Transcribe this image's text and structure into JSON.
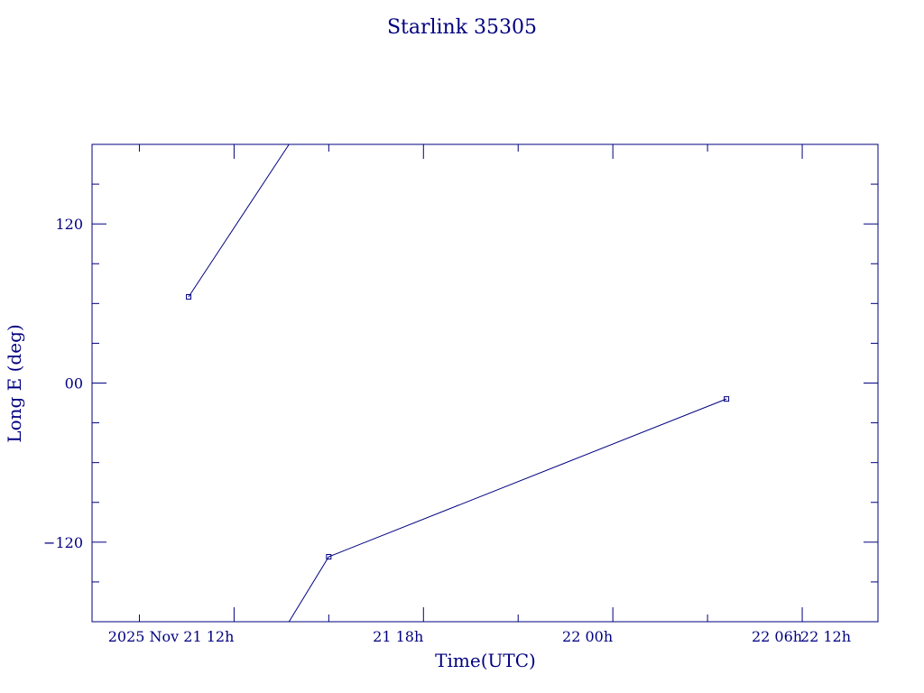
{
  "chart_data": {
    "type": "line",
    "title": "Starlink 35305",
    "xlabel": "Time(UTC)",
    "ylabel": "Long E (deg)",
    "x_unit": "hours",
    "xlim": [
      6.5,
      14.8
    ],
    "ylim": [
      -180,
      180
    ],
    "y_ticks_major": [
      {
        "value": 120,
        "label": "120"
      },
      {
        "value": 0,
        "label": "00"
      },
      {
        "value": -120,
        "label": "-120"
      }
    ],
    "y_minor_step": 30,
    "x_ticks_major": [
      {
        "value": 8.0,
        "label": "2025 Nov 21 12h"
      },
      {
        "value": 10.0,
        "label": "21 18h"
      },
      {
        "value": 12.0,
        "label": "22 00h"
      },
      {
        "value": 14.0,
        "label": "22 06h"
      },
      {
        "value": 16.0,
        "label": "22 12h"
      }
    ],
    "series": [
      {
        "points": [
          {
            "x": 7.52,
            "y": 65.0
          },
          {
            "x": 8.58,
            "y": 180.0
          }
        ],
        "markers": [
          0
        ]
      },
      {
        "points": [
          {
            "x": 8.58,
            "y": -180.0
          },
          {
            "x": 9.0,
            "y": -131.0
          },
          {
            "x": 13.2,
            "y": -12.0
          }
        ],
        "markers": [
          1,
          2
        ]
      }
    ],
    "colors": {
      "axis": "#000080",
      "line": "#000080",
      "background": "#ffffff"
    }
  }
}
